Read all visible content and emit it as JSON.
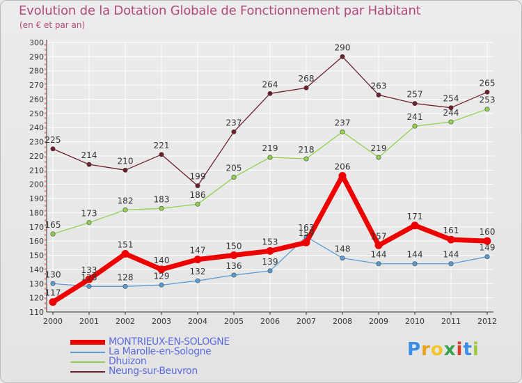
{
  "colors": {
    "title": "#b14a7a",
    "axis": "#333333",
    "grid": "#ffffff",
    "axis_red_ticks": "#dd3333",
    "series": [
      "#ee0000",
      "#5b9bd5",
      "#92d050",
      "#6d1f2a"
    ],
    "label_text": "#333333"
  },
  "chart_data": {
    "type": "line",
    "title": "Evolution de la Dotation Globale de Fonctionnement par Habitant",
    "subtitle": "(en € et par an)",
    "xlabel": "",
    "ylabel": "",
    "ylim": [
      110,
      300
    ],
    "ytick_step": 10,
    "grid": true,
    "legend_position": "bottom-left",
    "categories": [
      "2000",
      "2001",
      "2002",
      "2003",
      "2004",
      "2005",
      "2006",
      "2007",
      "2008",
      "2009",
      "2010",
      "2011",
      "2012"
    ],
    "yticks": [
      "110",
      "120",
      "130",
      "140",
      "150",
      "160",
      "170",
      "180",
      "190",
      "200",
      "210",
      "220",
      "230",
      "240",
      "250",
      "260",
      "270",
      "280",
      "290",
      "300"
    ],
    "series": [
      {
        "name": "MONTRIEUX-EN-SOLOGNE",
        "values": [
          117,
          133,
          151,
          140,
          147,
          150,
          153,
          159,
          206,
          157,
          171,
          161,
          160
        ],
        "labels": [
          "117",
          "133",
          "151",
          "140",
          "147",
          "150",
          "153",
          "159",
          "206",
          "157",
          "171",
          "161",
          "160"
        ]
      },
      {
        "name": "La Marolle-en-Sologne",
        "values": [
          130,
          128,
          128,
          129,
          132,
          136,
          139,
          163,
          148,
          144,
          144,
          144,
          149
        ],
        "labels": [
          "130",
          "128",
          "128",
          "129",
          "132",
          "136",
          "139",
          "163",
          "148",
          "144",
          "144",
          "144",
          "149"
        ]
      },
      {
        "name": "Dhuizon",
        "values": [
          165,
          173,
          182,
          183,
          186,
          205,
          219,
          218,
          237,
          219,
          241,
          244,
          253
        ],
        "labels": [
          "165",
          "173",
          "182",
          "183",
          "186",
          "205",
          "219",
          "218",
          "237",
          "219",
          "241",
          "244",
          "253"
        ]
      },
      {
        "name": "Neung-sur-Beuvron",
        "values": [
          225,
          214,
          210,
          221,
          199,
          237,
          264,
          268,
          290,
          263,
          257,
          254,
          265
        ],
        "labels": [
          "225",
          "214",
          "210",
          "221",
          "199",
          "237",
          "264",
          "268",
          "290",
          "263",
          "257",
          "254",
          "265"
        ]
      }
    ]
  },
  "legend": {
    "items": [
      {
        "label": "MONTRIEUX-EN-SOLOGNE",
        "color": "#ee0000"
      },
      {
        "label": "La Marolle-en-Sologne",
        "color": "#5b9bd5"
      },
      {
        "label": "Dhuizon",
        "color": "#92d050"
      },
      {
        "label": "Neung-sur-Beuvron",
        "color": "#6d1f2a"
      }
    ],
    "label_color": "#5b6be0"
  },
  "brand": {
    "letters": [
      "P",
      "r",
      "o",
      "x",
      "i",
      "t",
      "i"
    ],
    "colors": [
      "#3a8ee6",
      "#e8a21c",
      "#f2c62a",
      "#3aa14e",
      "#d43c2c",
      "#3a8ee6",
      "#9bc93a"
    ]
  }
}
